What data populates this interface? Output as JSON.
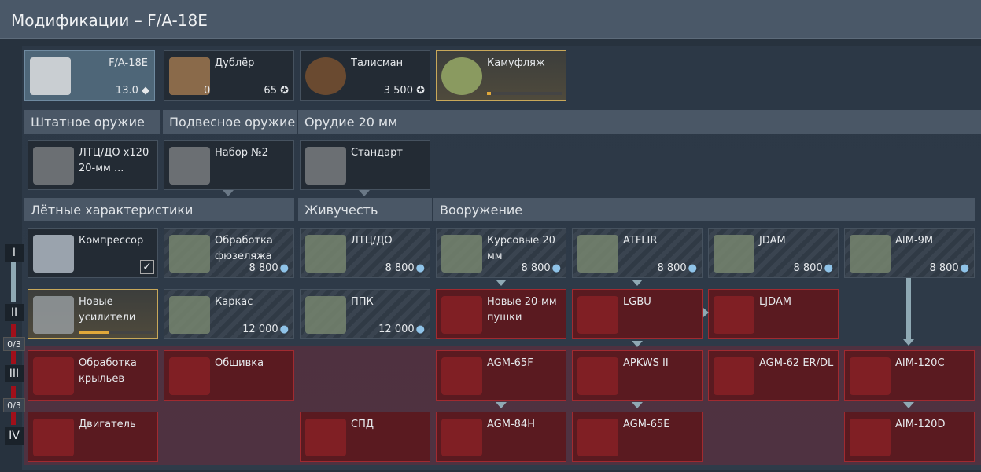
{
  "title": "Модификации – F/A-18E",
  "top_cards": [
    {
      "label": "F/A-18E",
      "value": "13.0 ◆",
      "style": "sel",
      "icon": "jet-icon",
      "color": "#c9ced2"
    },
    {
      "label": "Дублёр",
      "left_value": "0",
      "value": "65 ✪",
      "style": "",
      "icon": "crew-cards-icon",
      "color": "#8a6a4a"
    },
    {
      "label": "Талисман",
      "value": "3 500 ✪",
      "style": "",
      "icon": "talisman-icon",
      "color": "#6a4a30"
    },
    {
      "label": "Камуфляж",
      "value": "",
      "style": "gold",
      "icon": "camouflage-brush-icon",
      "color": "#8a9a60",
      "progress": 0.05
    }
  ],
  "weapon_headers": [
    "Штатное оружие",
    "Подвесное оружие",
    "Орудие 20 мм"
  ],
  "weapon_cards": [
    {
      "label": "ЛТЦ/ДО x120 20-мм ...",
      "icon": "gatling-gun-icon"
    },
    {
      "label": "Набор №2",
      "icon": "weapon-set-icon"
    },
    {
      "label": "Стандарт",
      "icon": "ammo-belt-icon"
    }
  ],
  "module_headers": [
    "Лётные характеристики",
    "Живучесть",
    "Вооружение"
  ],
  "tiers": [
    "I",
    "II",
    "III",
    "IV"
  ],
  "tier_counts": [
    "0/3",
    "0/3"
  ],
  "modules": [
    {
      "r": 0,
      "c": 0,
      "label": "Компрессор",
      "state": "owned",
      "checked": true,
      "icon": "compressor-icon"
    },
    {
      "r": 0,
      "c": 1,
      "label": "Обработка фюзеляжа",
      "value": "8 800",
      "state": "hatch",
      "icon": "fuselage-icon"
    },
    {
      "r": 0,
      "c": 2,
      "label": "ЛТЦ/ДО",
      "value": "8 800",
      "state": "hatch",
      "icon": "belt-icon"
    },
    {
      "r": 0,
      "c": 3,
      "label": "Курсовые 20 мм",
      "value": "8 800",
      "state": "hatch",
      "icon": "cannon-icon"
    },
    {
      "r": 0,
      "c": 4,
      "label": "ATFLIR",
      "value": "8 800",
      "state": "hatch",
      "icon": "targeting-pod-icon"
    },
    {
      "r": 0,
      "c": 5,
      "label": "JDAM",
      "value": "8 800",
      "state": "hatch",
      "icon": "bomb-icon"
    },
    {
      "r": 0,
      "c": 6,
      "label": "AIM-9M",
      "value": "8 800",
      "state": "hatch",
      "icon": "missile-icon"
    },
    {
      "r": 1,
      "c": 0,
      "label": "Новые усилители",
      "state": "gold",
      "progress": 0.4,
      "icon": "boosters-icon"
    },
    {
      "r": 1,
      "c": 1,
      "label": "Каркас",
      "value": "12 000",
      "state": "hatch",
      "icon": "frame-icon"
    },
    {
      "r": 1,
      "c": 2,
      "label": "ППК",
      "value": "12 000",
      "state": "hatch",
      "icon": "g-suit-icon"
    },
    {
      "r": 1,
      "c": 3,
      "label": "Новые 20-мм пушки",
      "state": "red",
      "icon": "cannon-icon"
    },
    {
      "r": 1,
      "c": 4,
      "label": "LGBU",
      "state": "red",
      "icon": "bomb-icon"
    },
    {
      "r": 1,
      "c": 5,
      "label": "LJDAM",
      "state": "red",
      "icon": "bomb-icon"
    },
    {
      "r": 2,
      "c": 0,
      "label": "Обработка крыльев",
      "state": "red",
      "icon": "wing-icon"
    },
    {
      "r": 2,
      "c": 1,
      "label": "Обшивка",
      "state": "red",
      "icon": "skin-icon"
    },
    {
      "r": 2,
      "c": 3,
      "label": "AGM-65F",
      "state": "red",
      "icon": "missile-icon"
    },
    {
      "r": 2,
      "c": 4,
      "label": "APKWS II",
      "state": "red",
      "icon": "rocket-pod-icon"
    },
    {
      "r": 2,
      "c": 5,
      "label": "AGM-62 ER/DL",
      "state": "red",
      "icon": "rocket-pod-icon"
    },
    {
      "r": 2,
      "c": 6,
      "label": "AIM-120C",
      "state": "red",
      "icon": "missile-icon"
    },
    {
      "r": 3,
      "c": 0,
      "label": "Двигатель",
      "state": "red",
      "icon": "engine-icon"
    },
    {
      "r": 3,
      "c": 2,
      "label": "СПД",
      "state": "red",
      "icon": "fire-extinguisher-icon"
    },
    {
      "r": 3,
      "c": 3,
      "label": "AGM-84H",
      "state": "red",
      "icon": "missile-icon"
    },
    {
      "r": 3,
      "c": 4,
      "label": "AGM-65E",
      "state": "red",
      "icon": "missile-icon"
    },
    {
      "r": 3,
      "c": 6,
      "label": "AIM-120D",
      "state": "red",
      "icon": "missile-icon"
    }
  ],
  "colors": {
    "research_icon": "#8fc3e8",
    "locked": "#a12a30",
    "progress": "#e0a83a"
  }
}
